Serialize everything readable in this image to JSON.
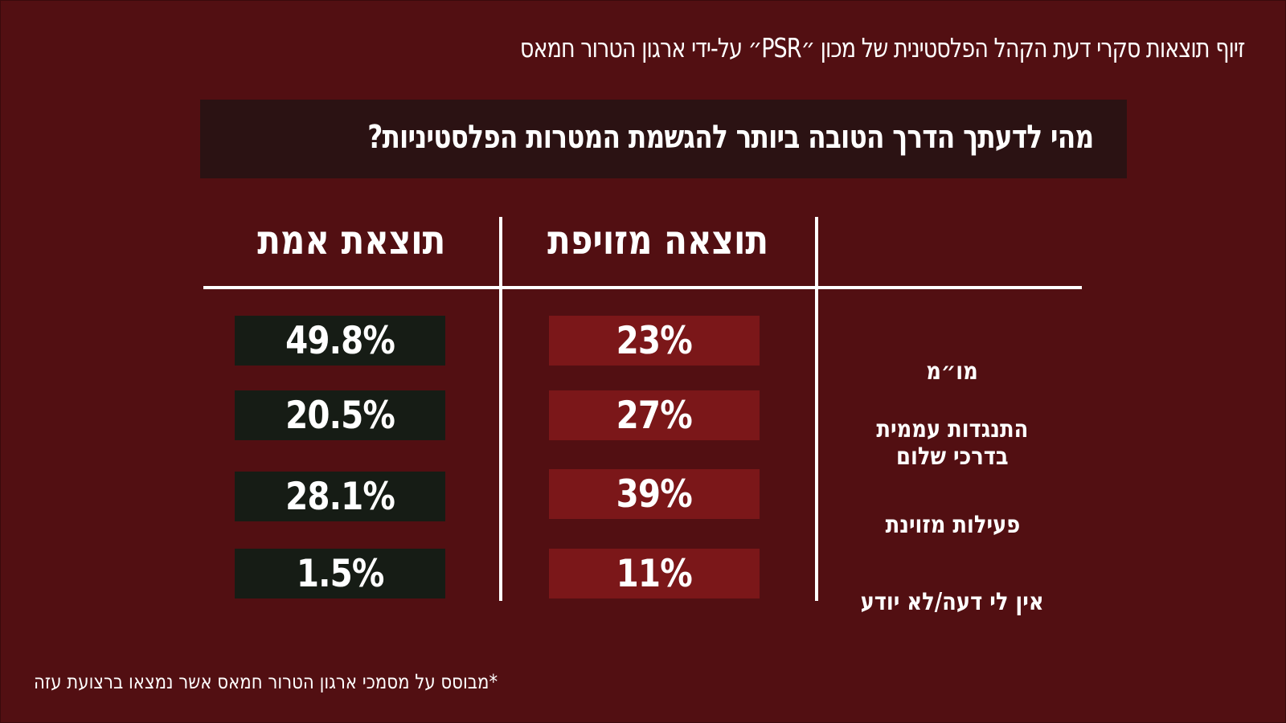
{
  "title": "זיוף תוצאות סקרי דעת הקהל הפלסטינית של מכון ״PSR״ על-ידי ארגון הטרור חמאס",
  "question": "מהי לדעתך הדרך הטובה ביותר להגשמת המטרות הפלסטיניות?",
  "columns": {
    "fake": "תוצאה מזויפת",
    "real": "תוצאת אמת"
  },
  "rows": [
    {
      "label": "מו״מ",
      "fake": "23%",
      "real": "49.8%"
    },
    {
      "label": "התנגדות עממית\nבדרכי שלום",
      "fake": "27%",
      "real": "20.5%"
    },
    {
      "label": "פעילות מזוינת",
      "fake": "39%",
      "real": "28.1%"
    },
    {
      "label": "אין לי דעה/לא יודע",
      "fake": "11%",
      "real": "1.5%"
    }
  ],
  "footnote": "*מבוסס על מסמכי ארגון הטרור חמאס אשר נמצאו ברצועת עזה",
  "colors": {
    "background": "#520f12",
    "question_box": "#2b1213",
    "fake_cell": "#7b1719",
    "real_cell": "#161c15"
  }
}
